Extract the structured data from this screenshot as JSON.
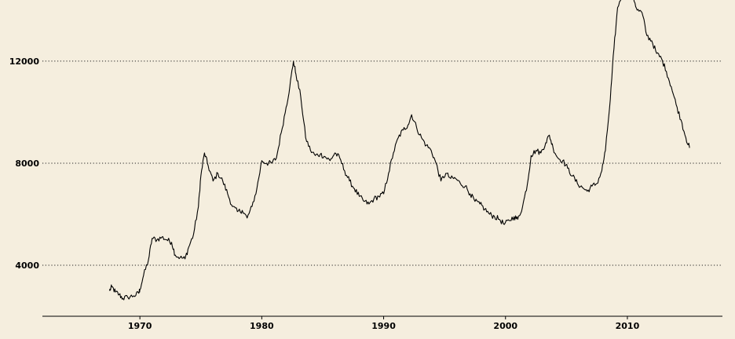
{
  "chart_data": {
    "type": "line",
    "title": "",
    "xlabel": "",
    "ylabel": "",
    "xlim": [
      1962,
      2017.8
    ],
    "ylim": [
      2000,
      14150
    ],
    "grid": "horizontal-dotted",
    "x_ticks": [
      1970,
      1980,
      1990,
      2000,
      2010
    ],
    "y_ticks": [
      4000,
      8000,
      12000
    ],
    "colors": {
      "background": "#f5eede",
      "line": "#000000",
      "grid": "#222222"
    },
    "series": [
      {
        "values": [
          [
            1967.5,
            3000
          ],
          [
            1967.7,
            3150
          ],
          [
            1968.0,
            2950
          ],
          [
            1968.3,
            2850
          ],
          [
            1968.6,
            2700
          ],
          [
            1969.0,
            2750
          ],
          [
            1969.5,
            2800
          ],
          [
            1969.9,
            2900
          ],
          [
            1970.0,
            3050
          ],
          [
            1970.3,
            3600
          ],
          [
            1970.7,
            4200
          ],
          [
            1971.0,
            5050
          ],
          [
            1971.4,
            5000
          ],
          [
            1971.8,
            5100
          ],
          [
            1972.2,
            5000
          ],
          [
            1972.6,
            4900
          ],
          [
            1972.9,
            4400
          ],
          [
            1973.3,
            4300
          ],
          [
            1973.7,
            4250
          ],
          [
            1974.0,
            4700
          ],
          [
            1974.4,
            5200
          ],
          [
            1974.8,
            6300
          ],
          [
            1975.0,
            7500
          ],
          [
            1975.3,
            8400
          ],
          [
            1975.6,
            7900
          ],
          [
            1976.0,
            7300
          ],
          [
            1976.4,
            7600
          ],
          [
            1976.8,
            7300
          ],
          [
            1977.2,
            6800
          ],
          [
            1977.6,
            6300
          ],
          [
            1978.0,
            6100
          ],
          [
            1978.4,
            6150
          ],
          [
            1978.8,
            5850
          ],
          [
            1979.2,
            6300
          ],
          [
            1979.6,
            7000
          ],
          [
            1980.0,
            8100
          ],
          [
            1980.4,
            8000
          ],
          [
            1980.8,
            8000
          ],
          [
            1981.2,
            8200
          ],
          [
            1981.6,
            9200
          ],
          [
            1982.0,
            10200
          ],
          [
            1982.3,
            11000
          ],
          [
            1982.6,
            12000
          ],
          [
            1982.8,
            11500
          ],
          [
            1983.2,
            10600
          ],
          [
            1983.6,
            9000
          ],
          [
            1984.0,
            8500
          ],
          [
            1984.4,
            8300
          ],
          [
            1984.8,
            8350
          ],
          [
            1985.2,
            8250
          ],
          [
            1985.6,
            8100
          ],
          [
            1986.0,
            8400
          ],
          [
            1986.4,
            8200
          ],
          [
            1986.8,
            7700
          ],
          [
            1987.2,
            7300
          ],
          [
            1987.6,
            7000
          ],
          [
            1988.0,
            6700
          ],
          [
            1988.4,
            6500
          ],
          [
            1988.8,
            6400
          ],
          [
            1989.2,
            6600
          ],
          [
            1989.6,
            6700
          ],
          [
            1990.0,
            6800
          ],
          [
            1990.4,
            7600
          ],
          [
            1990.8,
            8400
          ],
          [
            1991.2,
            9000
          ],
          [
            1991.6,
            9300
          ],
          [
            1992.0,
            9500
          ],
          [
            1992.3,
            9900
          ],
          [
            1992.7,
            9400
          ],
          [
            1993.1,
            9000
          ],
          [
            1993.5,
            8700
          ],
          [
            1993.9,
            8500
          ],
          [
            1994.3,
            8000
          ],
          [
            1994.7,
            7300
          ],
          [
            1995.1,
            7600
          ],
          [
            1995.5,
            7400
          ],
          [
            1995.9,
            7400
          ],
          [
            1996.3,
            7200
          ],
          [
            1996.7,
            7100
          ],
          [
            1997.1,
            6800
          ],
          [
            1997.5,
            6500
          ],
          [
            1997.9,
            6400
          ],
          [
            1998.3,
            6200
          ],
          [
            1998.7,
            6000
          ],
          [
            1999.1,
            5900
          ],
          [
            1999.5,
            5800
          ],
          [
            1999.9,
            5600
          ],
          [
            2000.3,
            5750
          ],
          [
            2000.7,
            5900
          ],
          [
            2001.0,
            5800
          ],
          [
            2001.4,
            6300
          ],
          [
            2001.8,
            7200
          ],
          [
            2002.1,
            8300
          ],
          [
            2002.5,
            8500
          ],
          [
            2002.9,
            8400
          ],
          [
            2003.3,
            8800
          ],
          [
            2003.6,
            9100
          ],
          [
            2003.9,
            8600
          ],
          [
            2004.3,
            8200
          ],
          [
            2004.7,
            8100
          ],
          [
            2005.1,
            7800
          ],
          [
            2005.5,
            7500
          ],
          [
            2005.9,
            7200
          ],
          [
            2006.3,
            7050
          ],
          [
            2006.7,
            6900
          ],
          [
            2007.1,
            7100
          ],
          [
            2007.5,
            7200
          ],
          [
            2007.9,
            7700
          ],
          [
            2008.2,
            8500
          ],
          [
            2008.6,
            10500
          ],
          [
            2008.9,
            12500
          ],
          [
            2009.2,
            14100
          ],
          [
            2009.6,
            14700
          ],
          [
            2009.9,
            14900
          ],
          [
            2010.2,
            14600
          ],
          [
            2010.5,
            14500
          ],
          [
            2010.8,
            14000
          ],
          [
            2011.2,
            13900
          ],
          [
            2011.6,
            13000
          ],
          [
            2012.0,
            12800
          ],
          [
            2012.4,
            12300
          ],
          [
            2012.8,
            12100
          ],
          [
            2013.2,
            11600
          ],
          [
            2013.6,
            11000
          ],
          [
            2014.0,
            10300
          ],
          [
            2014.4,
            9700
          ],
          [
            2014.8,
            9000
          ],
          [
            2015.1,
            8600
          ]
        ]
      }
    ]
  }
}
